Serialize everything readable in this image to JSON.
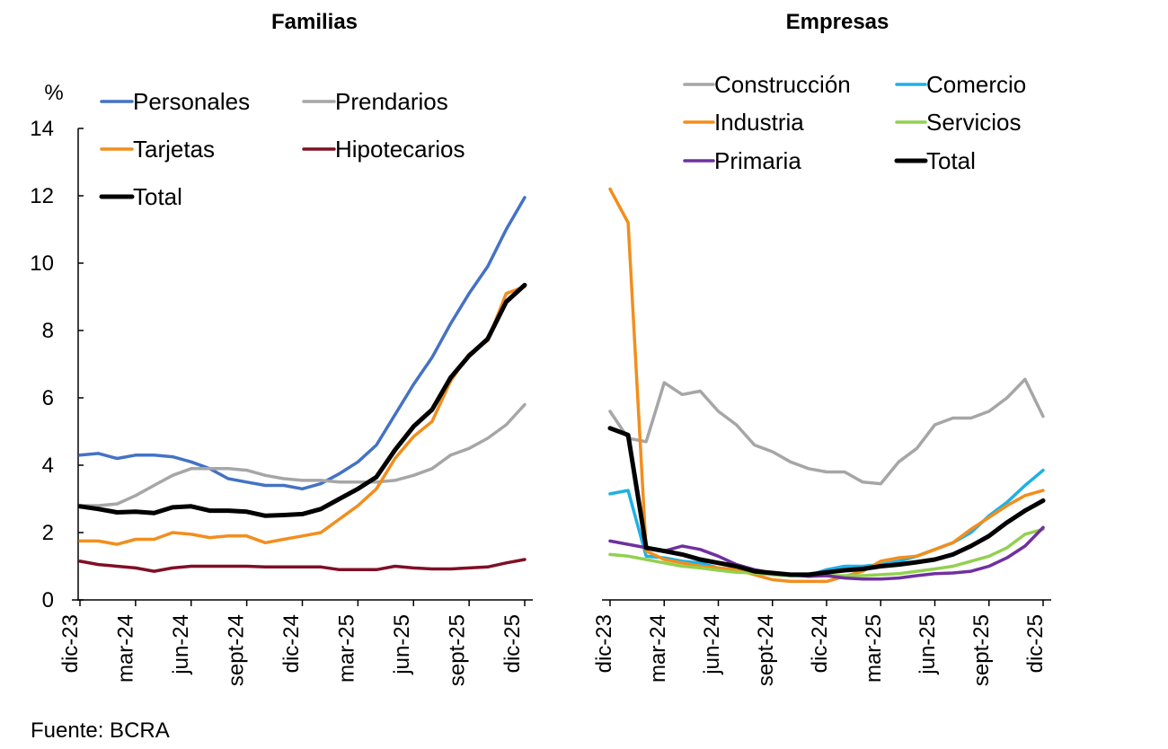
{
  "source": "Fuente: BCRA",
  "chart_data": [
    {
      "type": "line",
      "title": "Familias",
      "ylabel": "%",
      "ylim": [
        0,
        14
      ],
      "yticks": [
        0,
        2,
        4,
        6,
        8,
        10,
        12,
        14
      ],
      "x_count": 25,
      "xtick_labels": [
        "dic-23",
        "mar-24",
        "jun-24",
        "sept-24",
        "dic-24",
        "mar-25",
        "jun-25",
        "sept-25",
        "dic-25"
      ],
      "series": [
        {
          "name": "Personales",
          "color": "#4472C4",
          "values": [
            4.3,
            4.35,
            4.2,
            4.3,
            4.3,
            4.25,
            4.1,
            3.9,
            3.6,
            3.5,
            3.4,
            3.4,
            3.3,
            3.45,
            3.75,
            4.1,
            4.6,
            5.5,
            6.4,
            7.2,
            8.2,
            9.1,
            9.9,
            11.0,
            11.95
          ]
        },
        {
          "name": "Prendarios",
          "color": "#A6A6A6",
          "values": [
            2.8,
            2.8,
            2.85,
            3.1,
            3.4,
            3.7,
            3.9,
            3.9,
            3.9,
            3.85,
            3.7,
            3.6,
            3.55,
            3.55,
            3.5,
            3.5,
            3.5,
            3.55,
            3.7,
            3.9,
            4.3,
            4.5,
            4.8,
            5.2,
            5.8
          ]
        },
        {
          "name": "Tarjetas",
          "color": "#F28E1C",
          "values": [
            1.75,
            1.75,
            1.65,
            1.8,
            1.8,
            2.0,
            1.95,
            1.85,
            1.9,
            1.9,
            1.7,
            1.8,
            1.9,
            2.0,
            2.4,
            2.8,
            3.3,
            4.2,
            4.85,
            5.3,
            6.5,
            7.3,
            7.7,
            9.1,
            9.3
          ]
        },
        {
          "name": "Hipotecarios",
          "color": "#7F0F25",
          "values": [
            1.15,
            1.05,
            1.0,
            0.95,
            0.85,
            0.95,
            1.0,
            1.0,
            1.0,
            1.0,
            0.98,
            0.98,
            0.98,
            0.98,
            0.9,
            0.9,
            0.9,
            1.0,
            0.95,
            0.92,
            0.92,
            0.95,
            0.98,
            1.1,
            1.2
          ]
        },
        {
          "name": "Total",
          "color": "#000000",
          "bold": true,
          "values": [
            2.78,
            2.7,
            2.6,
            2.62,
            2.58,
            2.75,
            2.78,
            2.65,
            2.65,
            2.62,
            2.5,
            2.52,
            2.55,
            2.7,
            3.0,
            3.3,
            3.65,
            4.45,
            5.15,
            5.65,
            6.6,
            7.25,
            7.75,
            8.85,
            9.35
          ]
        }
      ],
      "legend_rows": [
        [
          "Personales",
          "Prendarios"
        ],
        [
          "Tarjetas",
          "Hipotecarios"
        ],
        [
          "Total"
        ]
      ]
    },
    {
      "type": "line",
      "title": "Empresas",
      "ylim": [
        0,
        14
      ],
      "x_count": 25,
      "xtick_labels": [
        "dic-23",
        "mar-24",
        "jun-24",
        "sept-24",
        "dic-24",
        "mar-25",
        "jun-25",
        "sept-25",
        "dic-25"
      ],
      "series": [
        {
          "name": "Construcción",
          "color": "#A6A6A6",
          "values": [
            5.6,
            4.8,
            4.7,
            6.45,
            6.1,
            6.2,
            5.6,
            5.2,
            4.6,
            4.4,
            4.1,
            3.9,
            3.8,
            3.8,
            3.5,
            3.45,
            4.1,
            4.5,
            5.2,
            5.4,
            5.4,
            5.6,
            6.0,
            6.55,
            5.45
          ]
        },
        {
          "name": "Comercio",
          "color": "#1FB0E6",
          "values": [
            3.15,
            3.25,
            1.3,
            1.25,
            1.15,
            1.1,
            0.95,
            0.85,
            0.8,
            0.75,
            0.72,
            0.72,
            0.9,
            1.0,
            1.0,
            1.05,
            1.15,
            1.3,
            1.5,
            1.7,
            2.0,
            2.5,
            2.9,
            3.4,
            3.85
          ]
        },
        {
          "name": "Industria",
          "color": "#F28E1C",
          "values": [
            12.2,
            11.2,
            1.45,
            1.2,
            1.1,
            1.0,
            0.95,
            0.9,
            0.75,
            0.6,
            0.55,
            0.55,
            0.55,
            0.7,
            0.85,
            1.15,
            1.25,
            1.3,
            1.5,
            1.7,
            2.1,
            2.45,
            2.8,
            3.1,
            3.25
          ]
        },
        {
          "name": "Servicios",
          "color": "#92D050",
          "values": [
            1.35,
            1.3,
            1.2,
            1.1,
            1.0,
            0.95,
            0.88,
            0.82,
            0.8,
            0.75,
            0.72,
            0.72,
            0.72,
            0.72,
            0.72,
            0.75,
            0.78,
            0.85,
            0.92,
            1.0,
            1.15,
            1.3,
            1.55,
            1.95,
            2.1
          ]
        },
        {
          "name": "Primaria",
          "color": "#7030A0",
          "values": [
            1.75,
            1.65,
            1.55,
            1.45,
            1.6,
            1.5,
            1.3,
            1.05,
            0.9,
            0.8,
            0.75,
            0.7,
            0.72,
            0.65,
            0.62,
            0.62,
            0.65,
            0.72,
            0.78,
            0.8,
            0.85,
            1.0,
            1.25,
            1.6,
            2.15
          ]
        },
        {
          "name": "Total",
          "color": "#000000",
          "bold": true,
          "values": [
            5.1,
            4.9,
            1.55,
            1.45,
            1.35,
            1.2,
            1.1,
            1.0,
            0.85,
            0.8,
            0.75,
            0.75,
            0.82,
            0.88,
            0.92,
            1.0,
            1.05,
            1.12,
            1.2,
            1.35,
            1.6,
            1.9,
            2.3,
            2.65,
            2.95
          ]
        }
      ],
      "legend_rows": [
        [
          "Construcción",
          "Comercio"
        ],
        [
          "Industria",
          "Servicios"
        ],
        [
          "Primaria",
          "Total"
        ]
      ]
    }
  ]
}
